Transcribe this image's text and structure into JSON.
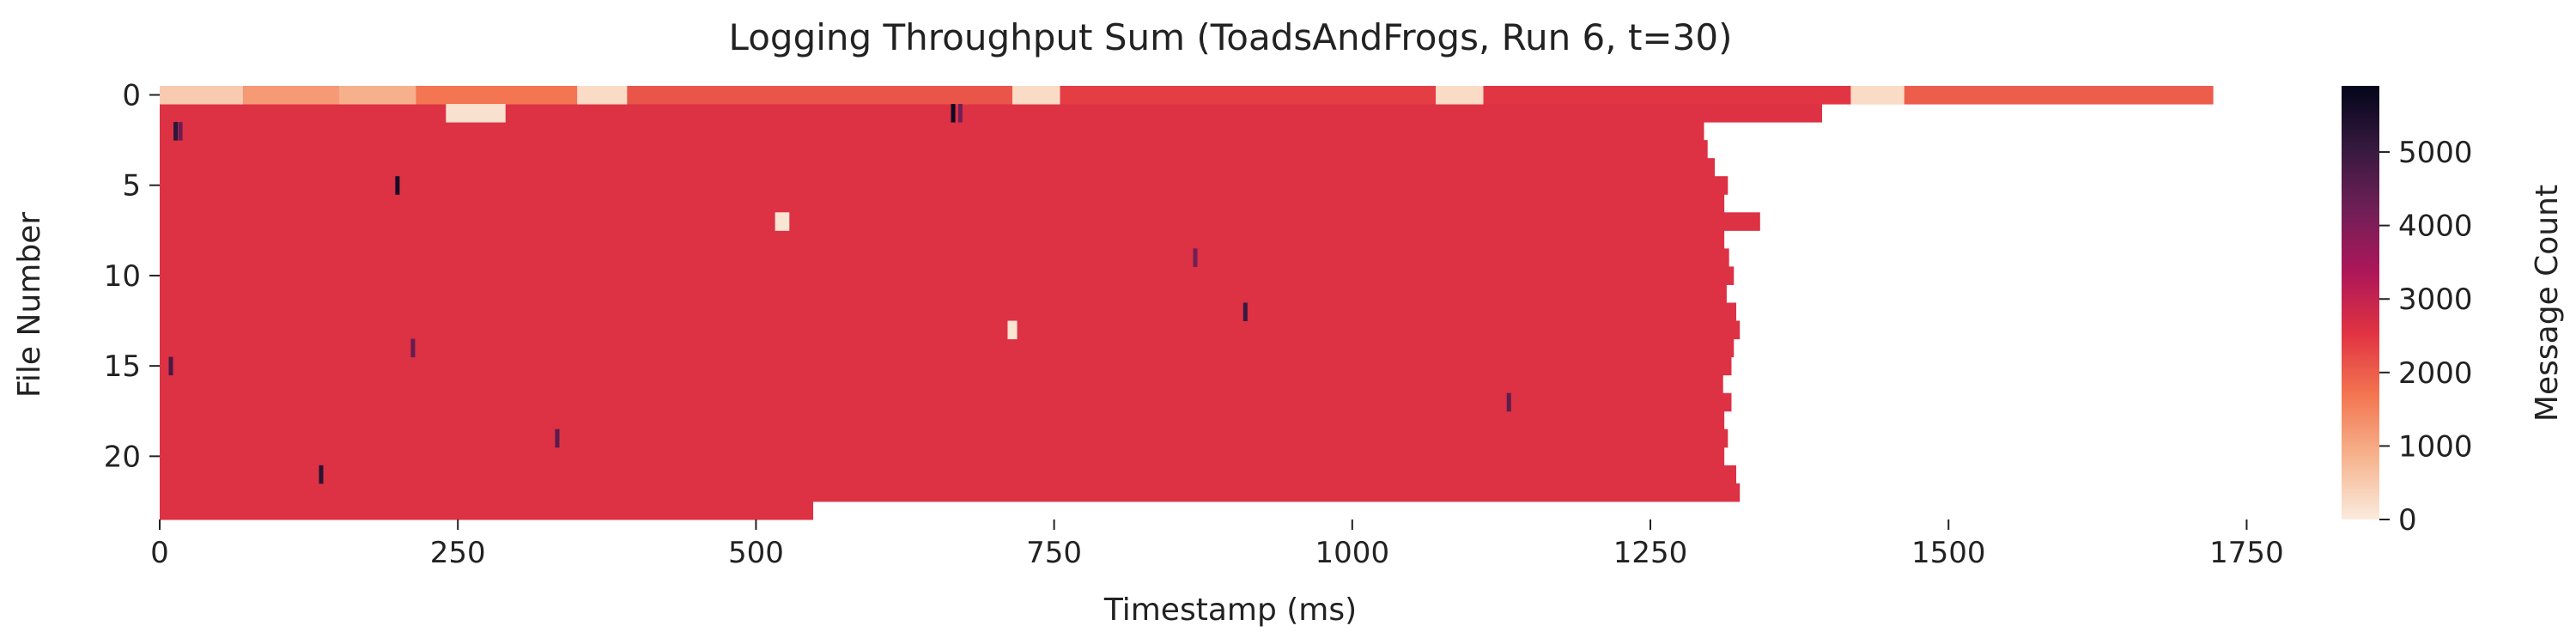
{
  "chart_data": {
    "type": "heatmap",
    "title": "Logging Throughput Sum (ToadsAndFrogs, Run 6, t=30)",
    "xlabel": "Timestamp (ms)",
    "ylabel": "File Number",
    "colorbar_label": "Message Count",
    "x_ticks": [
      0,
      250,
      500,
      750,
      1000,
      1250,
      1500,
      1750
    ],
    "y_ticks": [
      0,
      5,
      10,
      15,
      20
    ],
    "colorbar_ticks": [
      0,
      1000,
      2000,
      3000,
      4000,
      5000
    ],
    "xlim": [
      0,
      1790
    ],
    "ylim": [
      0,
      23
    ],
    "color_range": [
      0,
      5900
    ],
    "colormap": [
      "#faebdd",
      "#f6b48f",
      "#f37651",
      "#e13342",
      "#ad1759",
      "#701f57",
      "#35193e",
      "#03051a"
    ],
    "typical_value": 2600,
    "rows": [
      {
        "file": 0,
        "end": 1722
      },
      {
        "file": 1,
        "end": 1394
      },
      {
        "file": 2,
        "end": 1295
      },
      {
        "file": 3,
        "end": 1298
      },
      {
        "file": 4,
        "end": 1304
      },
      {
        "file": 5,
        "end": 1315
      },
      {
        "file": 6,
        "end": 1312
      },
      {
        "file": 7,
        "end": 1342
      },
      {
        "file": 8,
        "end": 1312
      },
      {
        "file": 9,
        "end": 1316
      },
      {
        "file": 10,
        "end": 1320
      },
      {
        "file": 11,
        "end": 1314
      },
      {
        "file": 12,
        "end": 1322
      },
      {
        "file": 13,
        "end": 1325
      },
      {
        "file": 14,
        "end": 1320
      },
      {
        "file": 15,
        "end": 1318
      },
      {
        "file": 16,
        "end": 1311
      },
      {
        "file": 17,
        "end": 1318
      },
      {
        "file": 18,
        "end": 1312
      },
      {
        "file": 19,
        "end": 1315
      },
      {
        "file": 20,
        "end": 1312
      },
      {
        "file": 21,
        "end": 1322
      },
      {
        "file": 22,
        "end": 1325
      },
      {
        "file": 23,
        "end": 548
      }
    ],
    "row0_segments": [
      {
        "x0": 0,
        "x1": 70,
        "value": 500
      },
      {
        "x0": 70,
        "x1": 150,
        "value": 1200
      },
      {
        "x0": 150,
        "x1": 215,
        "value": 900
      },
      {
        "x0": 215,
        "x1": 350,
        "value": 1700
      },
      {
        "x0": 350,
        "x1": 392,
        "value": 250
      },
      {
        "x0": 392,
        "x1": 715,
        "value": 2100
      },
      {
        "x0": 715,
        "x1": 755,
        "value": 250
      },
      {
        "x0": 755,
        "x1": 1070,
        "value": 2400
      },
      {
        "x0": 1070,
        "x1": 1110,
        "value": 250
      },
      {
        "x0": 1110,
        "x1": 1418,
        "value": 2500
      },
      {
        "x0": 1418,
        "x1": 1463,
        "value": 250
      },
      {
        "x0": 1463,
        "x1": 1722,
        "value": 2000
      }
    ],
    "low_cells": [
      {
        "file": 1,
        "x0": 240,
        "x1": 290,
        "value": 150
      },
      {
        "file": 7,
        "x0": 516,
        "x1": 528,
        "value": 100
      },
      {
        "file": 13,
        "x0": 711,
        "x1": 719,
        "value": 100
      }
    ],
    "peak_cells": [
      {
        "file": 2,
        "x": 13,
        "value": 5200
      },
      {
        "file": 2,
        "x": 17,
        "value": 4300
      },
      {
        "file": 1,
        "x": 665,
        "value": 5700
      },
      {
        "file": 1,
        "x": 671,
        "value": 4200
      },
      {
        "file": 5,
        "x": 199,
        "value": 5600
      },
      {
        "file": 15,
        "x": 9,
        "value": 4800
      },
      {
        "file": 21,
        "x": 135,
        "value": 5300
      },
      {
        "file": 19,
        "x": 333,
        "value": 4600
      },
      {
        "file": 12,
        "x": 910,
        "value": 5000
      },
      {
        "file": 17,
        "x": 1131,
        "value": 4500
      },
      {
        "file": 9,
        "x": 868,
        "value": 4200
      },
      {
        "file": 14,
        "x": 212,
        "value": 4400
      }
    ]
  }
}
